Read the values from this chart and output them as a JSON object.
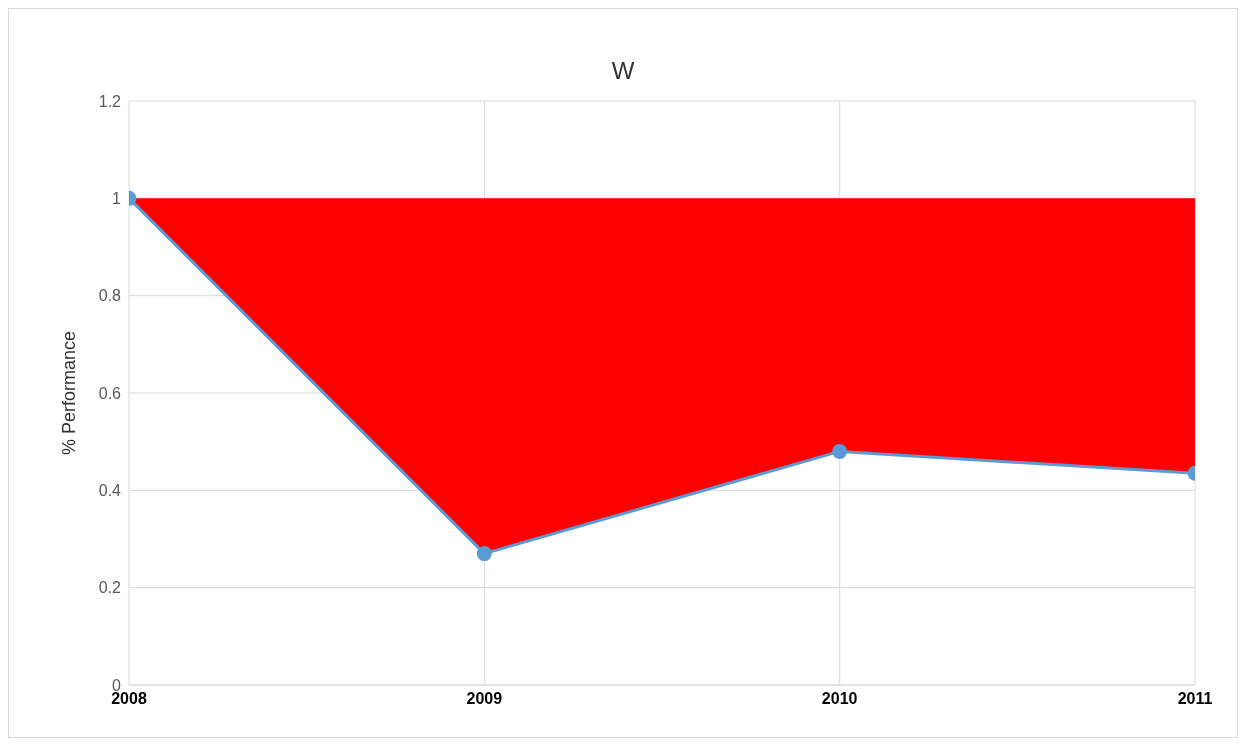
{
  "chart_data": {
    "type": "line",
    "title": "W",
    "ylabel": "% Performance",
    "categories": [
      "2008",
      "2009",
      "2010",
      "2011"
    ],
    "series": [
      {
        "color": "#5b9bd5",
        "values": [
          1,
          0.27,
          0.48,
          0.435
        ],
        "lower": [
          1,
          0.27,
          0.48,
          0.435
        ],
        "upper": [
          1,
          1,
          1,
          1
        ],
        "marker": "circle"
      }
    ],
    "ylim": [
      0,
      1.2
    ],
    "yticks": [
      0,
      0.2,
      0.4,
      0.6,
      0.8,
      1,
      1.2
    ],
    "grid": true,
    "line_style": "solid"
  }
}
